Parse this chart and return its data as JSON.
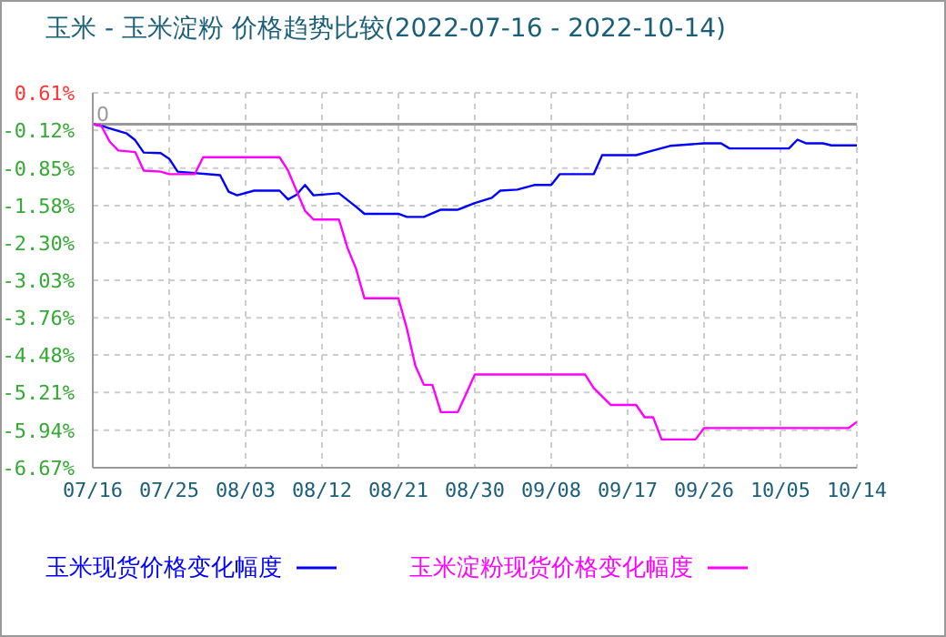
{
  "chart_data": {
    "type": "line",
    "title": "玉米 - 玉米淀粉 价格趋势比较(2022-07-16 - 2022-10-14)",
    "series": [
      {
        "name": "玉米现货价格变化幅度",
        "color": "#0000ff",
        "x": [
          "2022-07-16",
          "2022-07-17",
          "2022-07-18",
          "2022-07-20",
          "2022-07-21",
          "2022-07-22",
          "2022-07-24",
          "2022-07-25",
          "2022-07-26",
          "2022-07-31",
          "2022-08-01",
          "2022-08-02",
          "2022-08-04",
          "2022-08-07",
          "2022-08-08",
          "2022-08-09",
          "2022-08-10",
          "2022-08-11",
          "2022-08-14",
          "2022-08-16",
          "2022-08-17",
          "2022-08-21",
          "2022-08-22",
          "2022-08-24",
          "2022-08-26",
          "2022-08-28",
          "2022-08-30",
          "2022-09-01",
          "2022-09-02",
          "2022-09-04",
          "2022-09-06",
          "2022-09-08",
          "2022-09-09",
          "2022-09-13",
          "2022-09-14",
          "2022-09-18",
          "2022-09-20",
          "2022-09-22",
          "2022-09-26",
          "2022-09-28",
          "2022-09-29",
          "2022-10-06",
          "2022-10-07",
          "2022-10-08",
          "2022-10-10",
          "2022-10-11",
          "2022-10-14"
        ],
        "values": [
          0,
          -0.03,
          -0.08,
          -0.18,
          -0.31,
          -0.55,
          -0.56,
          -0.67,
          -0.92,
          -0.99,
          -1.31,
          -1.38,
          -1.29,
          -1.29,
          -1.46,
          -1.37,
          -1.18,
          -1.38,
          -1.34,
          -1.6,
          -1.74,
          -1.74,
          -1.8,
          -1.8,
          -1.66,
          -1.66,
          -1.53,
          -1.43,
          -1.29,
          -1.27,
          -1.18,
          -1.18,
          -0.97,
          -0.97,
          -0.6,
          -0.6,
          -0.51,
          -0.42,
          -0.37,
          -0.37,
          -0.47,
          -0.47,
          -0.3,
          -0.37,
          -0.37,
          -0.41,
          -0.41
        ]
      },
      {
        "name": "玉米淀粉现货价格变化幅度",
        "color": "#ff00ff",
        "x": [
          "2022-07-16",
          "2022-07-17",
          "2022-07-18",
          "2022-07-19",
          "2022-07-21",
          "2022-07-22",
          "2022-07-24",
          "2022-07-25",
          "2022-07-28",
          "2022-07-29",
          "2022-08-07",
          "2022-08-08",
          "2022-08-10",
          "2022-08-11",
          "2022-08-14",
          "2022-08-15",
          "2022-08-16",
          "2022-08-17",
          "2022-08-21",
          "2022-08-22",
          "2022-08-23",
          "2022-08-24",
          "2022-08-25",
          "2022-08-26",
          "2022-08-28",
          "2022-08-30",
          "2022-09-12",
          "2022-09-13",
          "2022-09-15",
          "2022-09-18",
          "2022-09-19",
          "2022-09-20",
          "2022-09-21",
          "2022-09-25",
          "2022-09-26",
          "2022-10-13",
          "2022-10-14"
        ],
        "values": [
          0,
          -0.03,
          -0.34,
          -0.51,
          -0.54,
          -0.9,
          -0.92,
          -0.97,
          -0.97,
          -0.64,
          -0.64,
          -0.9,
          -1.68,
          -1.85,
          -1.85,
          -2.4,
          -2.8,
          -3.38,
          -3.38,
          -3.97,
          -4.69,
          -5.06,
          -5.06,
          -5.59,
          -5.59,
          -4.86,
          -4.86,
          -5.12,
          -5.45,
          -5.45,
          -5.69,
          -5.69,
          -6.12,
          -6.12,
          -5.9,
          -5.9,
          -5.78
        ]
      }
    ],
    "xlim": [
      "2022-07-16",
      "2022-10-14"
    ],
    "xticks": [
      {
        "value": "2022-07-16",
        "label": "07/16"
      },
      {
        "value": "2022-07-25",
        "label": "07/25"
      },
      {
        "value": "2022-08-03",
        "label": "08/03"
      },
      {
        "value": "2022-08-12",
        "label": "08/12"
      },
      {
        "value": "2022-08-21",
        "label": "08/21"
      },
      {
        "value": "2022-08-30",
        "label": "08/30"
      },
      {
        "value": "2022-09-08",
        "label": "09/08"
      },
      {
        "value": "2022-09-17",
        "label": "09/17"
      },
      {
        "value": "2022-09-26",
        "label": "09/26"
      },
      {
        "value": "2022-10-05",
        "label": "10/05"
      },
      {
        "value": "2022-10-14",
        "label": "10/14"
      }
    ],
    "ylim": [
      -6.67,
      0.61
    ],
    "yticks": [
      {
        "value": 0.61,
        "label": "0.61%"
      },
      {
        "value": -0.12,
        "label": "-0.12%"
      },
      {
        "value": -0.85,
        "label": "-0.85%"
      },
      {
        "value": -1.58,
        "label": "-1.58%"
      },
      {
        "value": -2.3,
        "label": "-2.30%"
      },
      {
        "value": -3.03,
        "label": "-3.03%"
      },
      {
        "value": -3.76,
        "label": "-3.76%"
      },
      {
        "value": -4.48,
        "label": "-4.48%"
      },
      {
        "value": -5.21,
        "label": "-5.21%"
      },
      {
        "value": -5.94,
        "label": "-5.94%"
      },
      {
        "value": -6.67,
        "label": "-6.67%"
      }
    ],
    "ref_lines": [
      {
        "axis": "y",
        "value": 0,
        "label": "0",
        "color": "#999999"
      }
    ],
    "grid": true,
    "legend": "bottom",
    "marker": "none",
    "line_style": "solid"
  }
}
